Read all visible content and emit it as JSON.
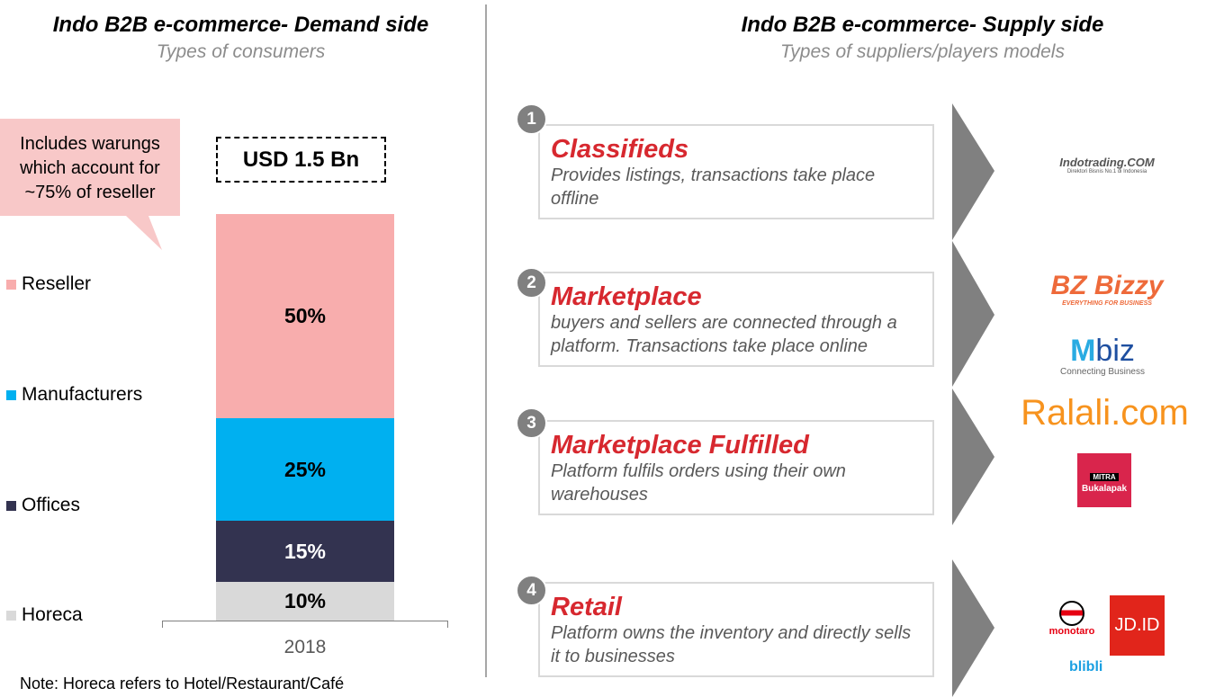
{
  "left": {
    "title": "Indo B2B e-commerce- Demand side",
    "subtitle": "Types of consumers",
    "callout": "Includes warungs which account for ~75% of reseller",
    "total": "USD 1.5 Bn",
    "year": "2018",
    "note": "Note: Horeca refers to Hotel/Restaurant/Café"
  },
  "chart_data": {
    "type": "bar",
    "stacked": true,
    "categories": [
      "2018"
    ],
    "series": [
      {
        "name": "Reseller",
        "values": [
          50
        ],
        "label": "50%",
        "color": "#F8ADAD"
      },
      {
        "name": "Manufacturers",
        "values": [
          25
        ],
        "label": "25%",
        "color": "#00B0F0"
      },
      {
        "name": "Offices",
        "values": [
          15
        ],
        "label": "15%",
        "color": "#333350"
      },
      {
        "name": "Horeca",
        "values": [
          10
        ],
        "label": "10%",
        "color": "#D9D9D9"
      }
    ],
    "ylim": [
      0,
      100
    ]
  },
  "right": {
    "title": "Indo B2B e-commerce- Supply side",
    "subtitle": "Types of suppliers/players models",
    "models": [
      {
        "num": "1",
        "name": "Classifieds",
        "desc": "Provides listings, transactions take place offline"
      },
      {
        "num": "2",
        "name": "Marketplace",
        "desc": "buyers and sellers are connected through a platform. Transactions take place online"
      },
      {
        "num": "3",
        "name": "Marketplace Fulfilled",
        "desc": "Platform fulfils orders using their own warehouses"
      },
      {
        "num": "4",
        "name": "Retail",
        "desc": "Platform owns the inventory and directly sells it to businesses"
      }
    ],
    "logos": {
      "indotrading": "Indotrading.COM",
      "indotrading_tag": "Direktori Bisnis No.1 di Indonesia",
      "bizzy": "Bizzy",
      "bizzy_tag": "EVERYTHING FOR BUSINESS",
      "mbiz": "biz",
      "mbiz_tag": "Connecting Business",
      "ralali": "Ralali.com",
      "bukalapak_top": "MITRA",
      "bukalapak": "Bukalapak",
      "monotaro": "monotaro",
      "jd": "JD.ID",
      "blibli": "blibli"
    }
  }
}
